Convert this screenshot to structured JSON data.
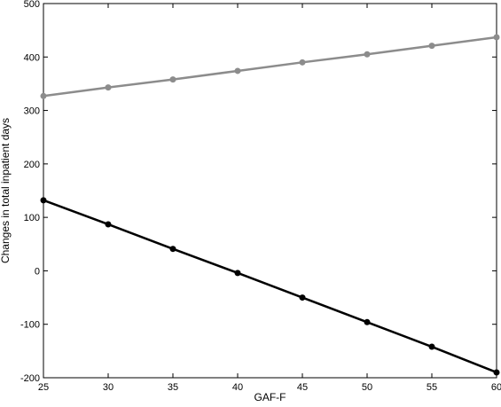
{
  "chart_data": {
    "type": "line",
    "xlabel": "GAF-F",
    "ylabel": "Changes in total inpatient days",
    "xlim": [
      25,
      60
    ],
    "ylim": [
      -200,
      500
    ],
    "x_ticks": [
      "25",
      "30",
      "35",
      "40",
      "45",
      "50",
      "55",
      "60"
    ],
    "y_ticks": [
      "-200",
      "-100",
      "0",
      "100",
      "200",
      "300",
      "400",
      "500"
    ],
    "grid": false,
    "x": [
      25,
      30,
      35,
      40,
      45,
      50,
      55,
      60
    ],
    "series": [
      {
        "color": "#8c8c8c",
        "values": [
          327,
          343,
          358,
          374,
          390,
          405,
          421,
          437
        ]
      },
      {
        "color": "#000000",
        "values": [
          132,
          87,
          41,
          -4,
          -50,
          -96,
          -142,
          -190
        ]
      }
    ]
  }
}
